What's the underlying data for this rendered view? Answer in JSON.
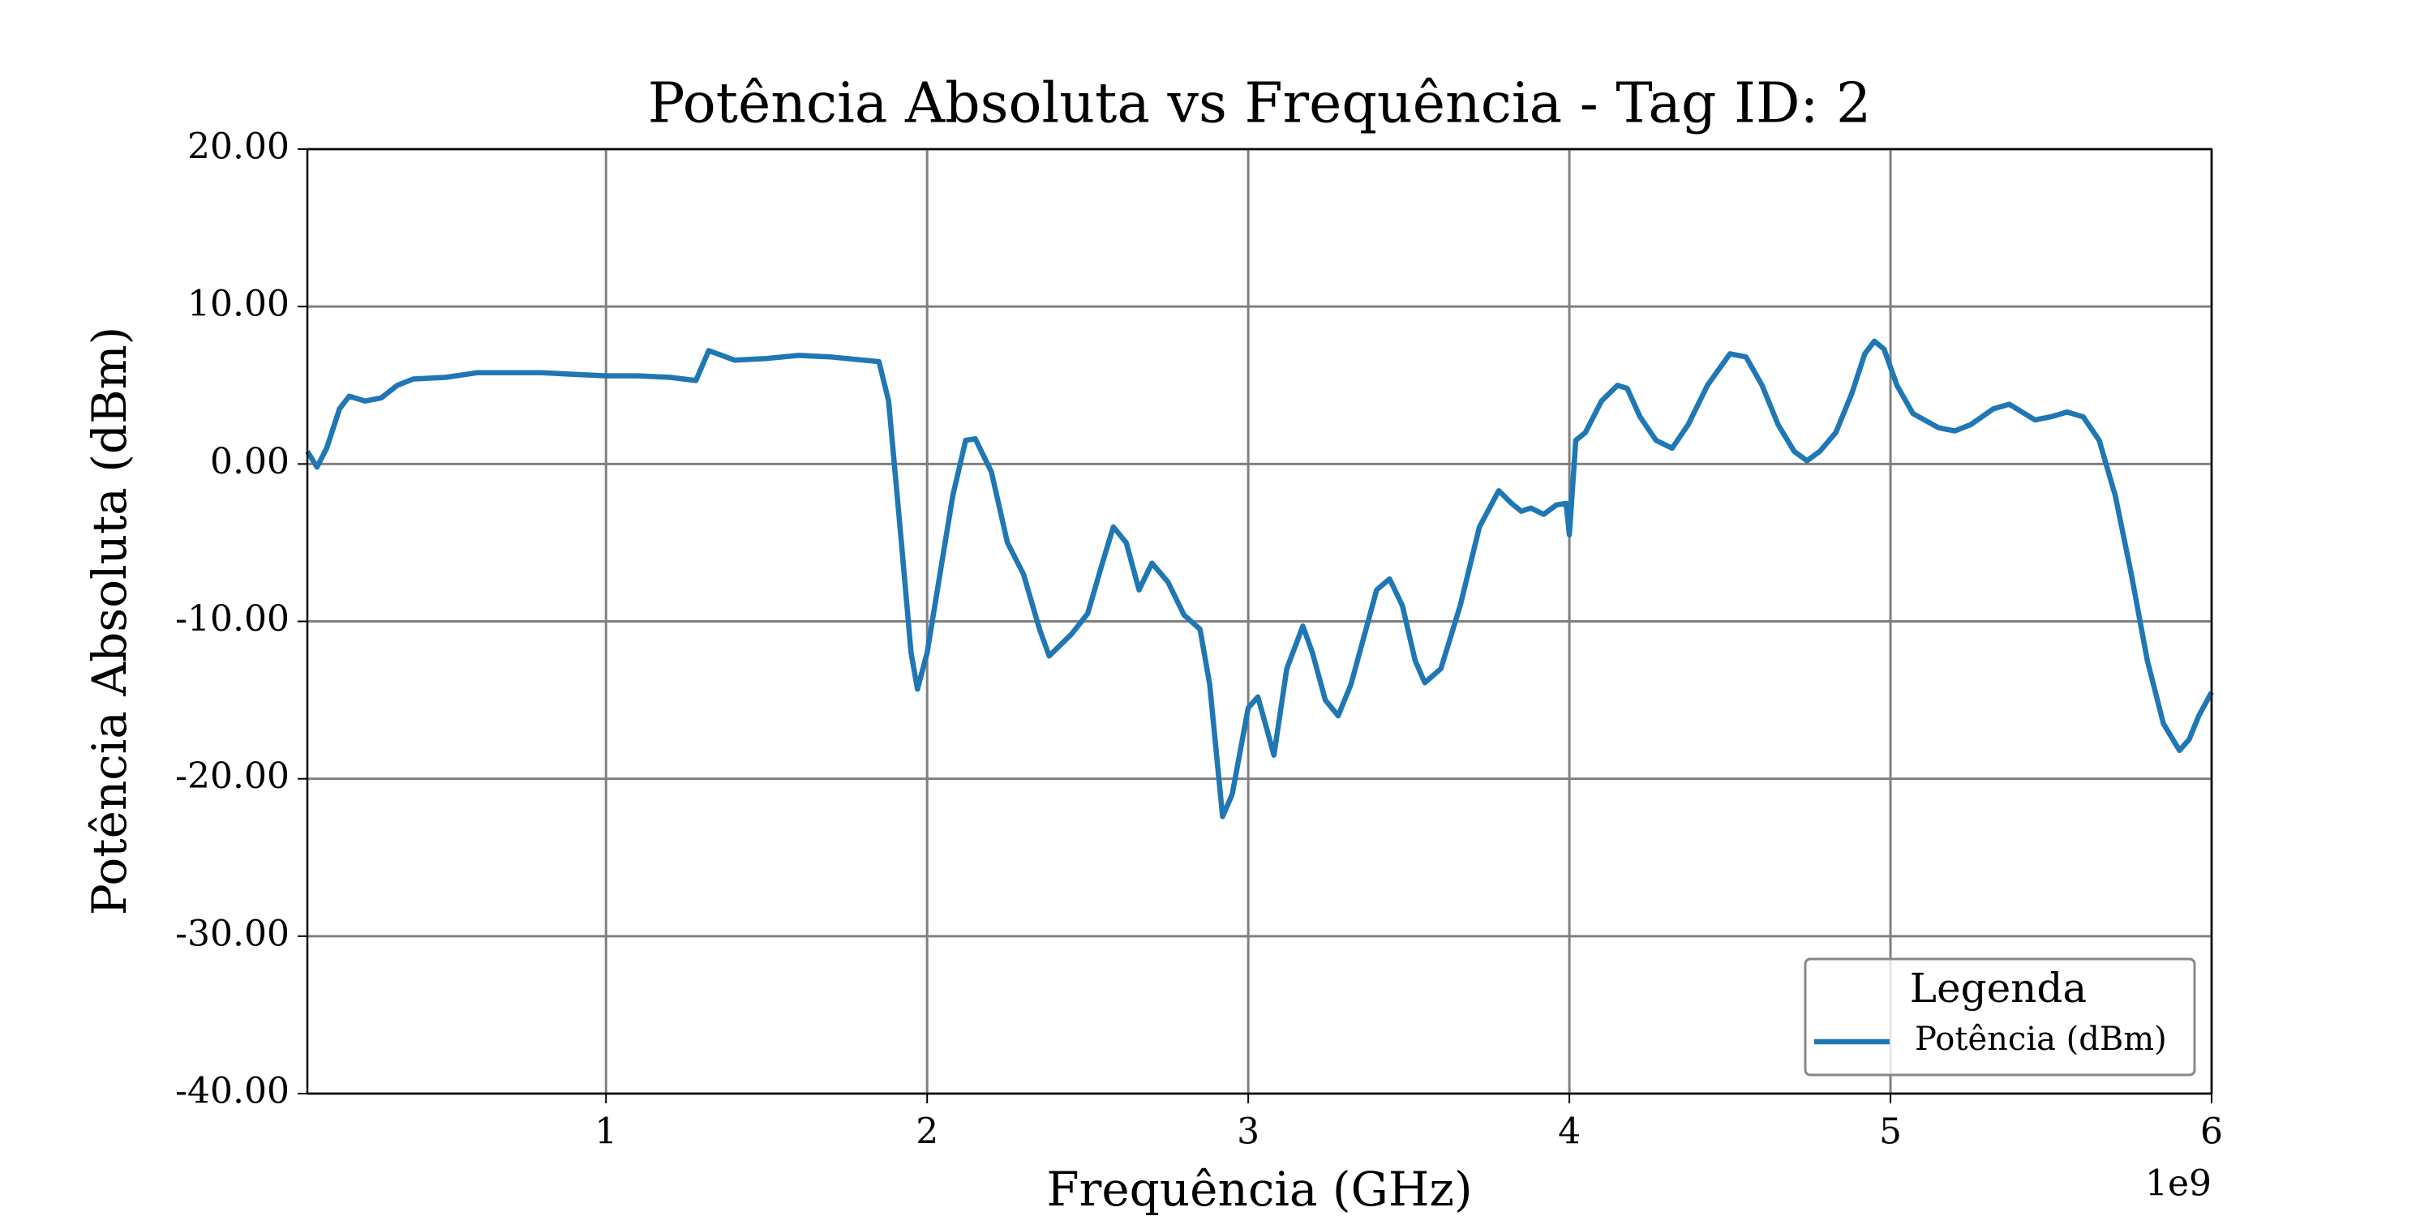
{
  "chart_data": {
    "type": "line",
    "title": "Potência Absoluta vs Frequência - Tag ID: 2",
    "x_label": "Frequência (GHz)",
    "y_label": "Potência Absoluta (dBm)",
    "x_offset_label": "1e9",
    "legend_title": "Legenda",
    "legend_loc": "lower right",
    "grid": true,
    "xlim": [
      70000000.0,
      6000000000.0
    ],
    "ylim": [
      -40,
      20
    ],
    "xticks": [
      {
        "value": 1000000000.0,
        "label": "1"
      },
      {
        "value": 2000000000.0,
        "label": "2"
      },
      {
        "value": 3000000000.0,
        "label": "3"
      },
      {
        "value": 4000000000.0,
        "label": "4"
      },
      {
        "value": 5000000000.0,
        "label": "5"
      },
      {
        "value": 6000000000.0,
        "label": "6"
      }
    ],
    "yticks": [
      {
        "value": -40,
        "label": "-40.00"
      },
      {
        "value": -30,
        "label": "-30.00"
      },
      {
        "value": -20,
        "label": "-20.00"
      },
      {
        "value": -10,
        "label": "-10.00"
      },
      {
        "value": 0,
        "label": "0.00"
      },
      {
        "value": 10,
        "label": "10.00"
      },
      {
        "value": 20,
        "label": "20.00"
      }
    ],
    "x": [
      70000000.0,
      100000000.0,
      130000000.0,
      170000000.0,
      200000000.0,
      250000000.0,
      300000000.0,
      350000000.0,
      400000000.0,
      500000000.0,
      600000000.0,
      700000000.0,
      800000000.0,
      900000000.0,
      1000000000.0,
      1100000000.0,
      1200000000.0,
      1280000000.0,
      1320000000.0,
      1400000000.0,
      1500000000.0,
      1600000000.0,
      1700000000.0,
      1800000000.0,
      1850000000.0,
      1880000000.0,
      1920000000.0,
      1950000000.0,
      1970000000.0,
      2000000000.0,
      2040000000.0,
      2080000000.0,
      2120000000.0,
      2150000000.0,
      2200000000.0,
      2250000000.0,
      2300000000.0,
      2350000000.0,
      2380000000.0,
      2450000000.0,
      2500000000.0,
      2550000000.0,
      2580000000.0,
      2620000000.0,
      2660000000.0,
      2700000000.0,
      2750000000.0,
      2800000000.0,
      2850000000.0,
      2880000000.0,
      2920000000.0,
      2950000000.0,
      3000000000.0,
      3030000000.0,
      3060000000.0,
      3080000000.0,
      3120000000.0,
      3170000000.0,
      3200000000.0,
      3240000000.0,
      3280000000.0,
      3320000000.0,
      3360000000.0,
      3400000000.0,
      3440000000.0,
      3480000000.0,
      3520000000.0,
      3550000000.0,
      3600000000.0,
      3660000000.0,
      3720000000.0,
      3780000000.0,
      3820000000.0,
      3850000000.0,
      3880000000.0,
      3920000000.0,
      3960000000.0,
      3990000000.0,
      4000000000.0,
      4020000000.0,
      4050000000.0,
      4100000000.0,
      4150000000.0,
      4180000000.0,
      4220000000.0,
      4270000000.0,
      4320000000.0,
      4370000000.0,
      4430000000.0,
      4500000000.0,
      4550000000.0,
      4600000000.0,
      4650000000.0,
      4700000000.0,
      4740000000.0,
      4780000000.0,
      4830000000.0,
      4880000000.0,
      4920000000.0,
      4950000000.0,
      4980000000.0,
      5020000000.0,
      5070000000.0,
      5150000000.0,
      5200000000.0,
      5250000000.0,
      5320000000.0,
      5370000000.0,
      5450000000.0,
      5500000000.0,
      5550000000.0,
      5600000000.0,
      5650000000.0,
      5700000000.0,
      5750000000.0,
      5800000000.0,
      5850000000.0,
      5900000000.0,
      5930000000.0,
      5960000000.0,
      6000000000.0
    ],
    "series": [
      {
        "name": "Potência (dBm)",
        "color": "#1f77b4",
        "values": [
          0.8,
          -0.2,
          1,
          3.5,
          4.3,
          4,
          4.2,
          5,
          5.4,
          5.5,
          5.8,
          5.8,
          5.8,
          5.7,
          5.6,
          5.6,
          5.5,
          5.3,
          7.2,
          6.6,
          6.7,
          6.9,
          6.8,
          6.6,
          6.5,
          4,
          -5,
          -12,
          -14.3,
          -12,
          -7,
          -2,
          1.5,
          1.6,
          -0.5,
          -5,
          -7,
          -10.5,
          -12.2,
          -10.8,
          -9.5,
          -6,
          -4,
          -5,
          -8,
          -6.3,
          -7.5,
          -9.6,
          -10.5,
          -14,
          -22.4,
          -21,
          -15.5,
          -14.8,
          -17,
          -18.5,
          -13,
          -10.3,
          -12,
          -15,
          -16,
          -14,
          -11,
          -8,
          -7.3,
          -9,
          -12.5,
          -13.9,
          -13,
          -9,
          -4,
          -1.7,
          -2.5,
          -3,
          -2.8,
          -3.2,
          -2.6,
          -2.5,
          -4.5,
          1.5,
          2,
          4,
          5,
          4.8,
          3,
          1.5,
          1,
          2.5,
          5,
          7,
          6.8,
          5,
          2.5,
          0.8,
          0.2,
          0.8,
          2,
          4.5,
          7,
          7.8,
          7.3,
          5,
          3.2,
          2.3,
          2.1,
          2.5,
          3.5,
          3.8,
          2.8,
          3,
          3.3,
          3,
          1.5,
          -2,
          -7,
          -12.5,
          -16.5,
          -18.2,
          -17.5,
          -16,
          -14.5
        ]
      }
    ]
  }
}
